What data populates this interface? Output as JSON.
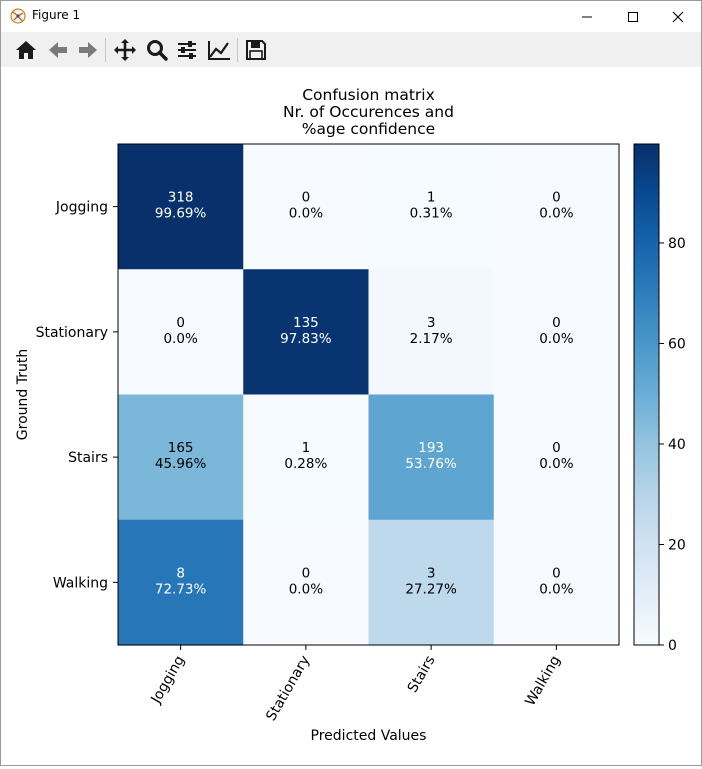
{
  "window": {
    "title": "Figure 1",
    "buttons": [
      "minimize-icon",
      "maximize-icon",
      "close-icon"
    ]
  },
  "toolbar": {
    "tools": [
      "home-icon",
      "back-arrow-icon",
      "forward-arrow-icon",
      "pan-icon",
      "zoom-icon",
      "subplots-config-icon",
      "axes-edit-icon",
      "save-icon"
    ]
  },
  "chart_data": {
    "type": "heatmap",
    "title": "Confusion matrix\nNr. of Occurences and\n%age confidence",
    "title_lines": [
      "Confusion matrix",
      "Nr. of Occurences and",
      "%age confidence"
    ],
    "xlabel": "Predicted Values",
    "ylabel": "Ground Truth",
    "x_categories": [
      "Jogging",
      "Stationary",
      "Stairs",
      "Walking"
    ],
    "y_categories": [
      "Jogging",
      "Stationary",
      "Stairs",
      "Walking"
    ],
    "counts": [
      [
        318,
        0,
        1,
        0
      ],
      [
        0,
        135,
        3,
        0
      ],
      [
        165,
        1,
        193,
        0
      ],
      [
        8,
        0,
        3,
        0
      ]
    ],
    "percent_labels": [
      [
        "99.69%",
        "0.0%",
        "0.31%",
        "0.0%"
      ],
      [
        "0.0%",
        "97.83%",
        "2.17%",
        "0.0%"
      ],
      [
        "45.96%",
        "0.28%",
        "53.76%",
        "0.0%"
      ],
      [
        "72.73%",
        "0.0%",
        "27.27%",
        "0.0%"
      ]
    ],
    "percent_values": [
      [
        99.69,
        0.0,
        0.31,
        0.0
      ],
      [
        0.0,
        97.83,
        2.17,
        0.0
      ],
      [
        45.96,
        0.28,
        53.76,
        0.0
      ],
      [
        72.73,
        0.0,
        27.27,
        0.0
      ]
    ],
    "colormap": "Blues",
    "colorbar": {
      "range": [
        0,
        99.69
      ],
      "ticks": [
        0,
        20,
        40,
        60,
        80
      ]
    },
    "x_tick_rotation": "60 degrees",
    "grid": false
  }
}
